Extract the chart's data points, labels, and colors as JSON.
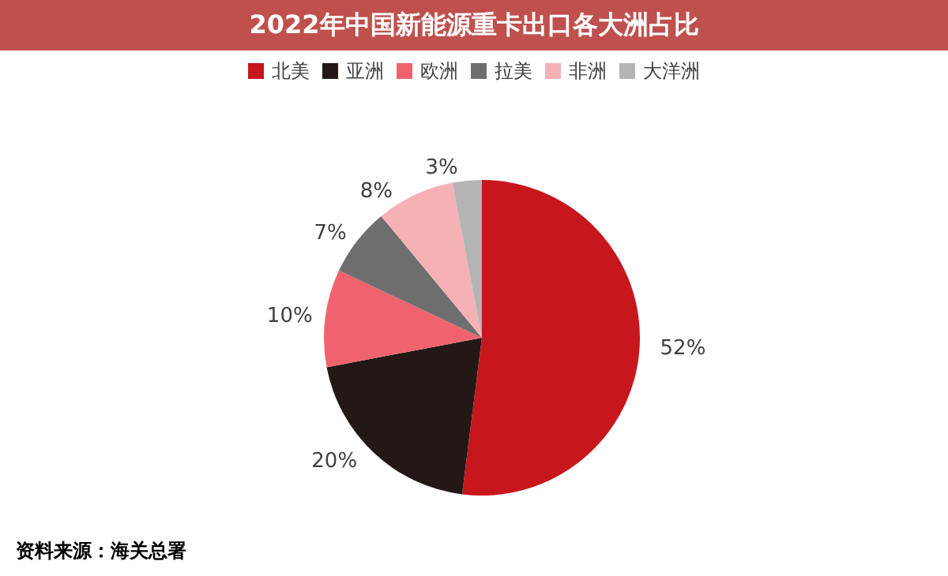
{
  "chart_data": {
    "type": "pie",
    "title": "2022年中国新能源重卡出口各大洲占比",
    "categories": [
      "北美",
      "亚洲",
      "欧洲",
      "拉美",
      "非洲",
      "大洋洲"
    ],
    "values": [
      52,
      20,
      10,
      7,
      8,
      3
    ],
    "colors": [
      "#c8161d",
      "#231815",
      "#f0636e",
      "#6e6e6e",
      "#f6b1b6",
      "#b4b4b4"
    ],
    "value_labels": [
      "52%",
      "20%",
      "10%",
      "7%",
      "8%",
      "3%"
    ],
    "legend": "top",
    "annotations": [
      "资料来源：海关总署"
    ]
  }
}
